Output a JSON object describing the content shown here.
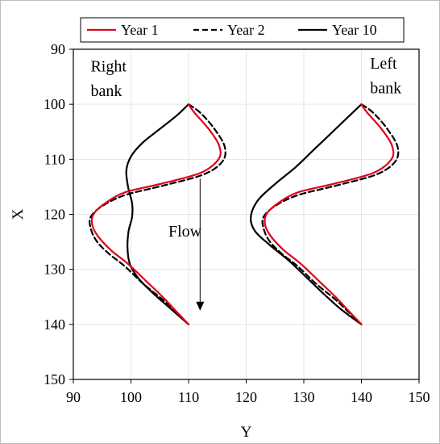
{
  "chart_data": {
    "type": "line",
    "xlabel": "Y",
    "ylabel": "X",
    "xlim": [
      90,
      150
    ],
    "ylim": [
      90,
      150
    ],
    "y_inverted": true,
    "x_ticks": [
      90,
      100,
      110,
      120,
      130,
      140,
      150
    ],
    "y_ticks": [
      90,
      100,
      110,
      120,
      130,
      140,
      150
    ],
    "grid": true,
    "legend_position": "top",
    "series": [
      {
        "name": "Year 1",
        "color": "#e0001b",
        "dash": "solid",
        "banks": [
          [
            [
              110,
              100
            ],
            [
              111,
              101.5
            ],
            [
              113.5,
              104.5
            ],
            [
              115.3,
              107.5
            ],
            [
              115.2,
              110
            ],
            [
              112,
              112.5
            ],
            [
              105,
              114.5
            ],
            [
              99,
              116
            ],
            [
              95.5,
              118
            ],
            [
              93.5,
              120
            ],
            [
              93.3,
              122
            ],
            [
              94.3,
              124
            ],
            [
              96.5,
              126.5
            ],
            [
              99.5,
              129
            ],
            [
              102.5,
              132
            ],
            [
              105.5,
              135
            ],
            [
              108,
              137.8
            ],
            [
              110,
              140
            ]
          ],
          [
            [
              140,
              100
            ],
            [
              141,
              101.5
            ],
            [
              143.5,
              104.5
            ],
            [
              145.3,
              107.5
            ],
            [
              145.2,
              110
            ],
            [
              142,
              112.5
            ],
            [
              135,
              114.5
            ],
            [
              129,
              116
            ],
            [
              125.5,
              118
            ],
            [
              123.5,
              120
            ],
            [
              123.3,
              122
            ],
            [
              124.3,
              124
            ],
            [
              126.5,
              126.5
            ],
            [
              129.5,
              129
            ],
            [
              132.5,
              132
            ],
            [
              135.5,
              135
            ],
            [
              138,
              137.8
            ],
            [
              140,
              140
            ]
          ]
        ]
      },
      {
        "name": "Year 2",
        "color": "#000000",
        "dash": "dashed",
        "banks": [
          [
            [
              110,
              100
            ],
            [
              112,
              101.5
            ],
            [
              114.5,
              104.5
            ],
            [
              116.3,
              107.8
            ],
            [
              115.8,
              110.5
            ],
            [
              112.5,
              112.8
            ],
            [
              105.5,
              114.8
            ],
            [
              99,
              116.5
            ],
            [
              95,
              118.5
            ],
            [
              93,
              120.5
            ],
            [
              93,
              122.5
            ],
            [
              94,
              124.8
            ],
            [
              96,
              127
            ],
            [
              99,
              129.5
            ],
            [
              102,
              132.5
            ],
            [
              105.5,
              135.5
            ],
            [
              108,
              138
            ],
            [
              110,
              140
            ]
          ],
          [
            [
              140,
              100
            ],
            [
              142,
              101.5
            ],
            [
              144.5,
              104.5
            ],
            [
              146.3,
              107.8
            ],
            [
              145.8,
              110.5
            ],
            [
              142.5,
              112.8
            ],
            [
              135.5,
              114.8
            ],
            [
              129,
              116.5
            ],
            [
              125,
              118.5
            ],
            [
              123,
              120.5
            ],
            [
              123,
              122.5
            ],
            [
              124,
              124.8
            ],
            [
              126,
              127
            ],
            [
              129,
              129.5
            ],
            [
              132,
              132.5
            ],
            [
              135.5,
              135.5
            ],
            [
              138,
              138
            ],
            [
              140,
              140
            ]
          ]
        ]
      },
      {
        "name": "Year 10",
        "color": "#000000",
        "dash": "solid",
        "banks": [
          [
            [
              110,
              100
            ],
            [
              108,
              102
            ],
            [
              105,
              104.5
            ],
            [
              102,
              107
            ],
            [
              100,
              109.5
            ],
            [
              99.2,
              112
            ],
            [
              99.5,
              115
            ],
            [
              100.2,
              118
            ],
            [
              100.2,
              120.5
            ],
            [
              99.6,
              123
            ],
            [
              99.4,
              126
            ],
            [
              99.8,
              129
            ],
            [
              101.2,
              131.5
            ],
            [
              103.5,
              134
            ],
            [
              106.5,
              136.8
            ],
            [
              110,
              140
            ]
          ],
          [
            [
              140,
              100
            ],
            [
              137.5,
              102.5
            ],
            [
              134.5,
              105.5
            ],
            [
              131.5,
              108.5
            ],
            [
              128.5,
              111.5
            ],
            [
              125,
              114.5
            ],
            [
              122,
              117.5
            ],
            [
              120.8,
              120.5
            ],
            [
              121.5,
              123
            ],
            [
              124,
              125.5
            ],
            [
              127.5,
              128.5
            ],
            [
              130.5,
              131.5
            ],
            [
              133.5,
              134.5
            ],
            [
              136.5,
              137.3
            ],
            [
              140,
              140
            ]
          ]
        ]
      }
    ],
    "annotations": [
      {
        "text": "Right",
        "x": 93,
        "y": 94
      },
      {
        "text": "bank",
        "x": 93,
        "y": 98.5
      },
      {
        "text": "Left",
        "x": 141.5,
        "y": 93.5
      },
      {
        "text": "bank",
        "x": 141.5,
        "y": 98
      },
      {
        "text": "Flow",
        "x": 106.5,
        "y": 124
      }
    ],
    "flow_arrow": {
      "x": 112,
      "y_start": 113.5,
      "y_end": 137.5
    }
  }
}
